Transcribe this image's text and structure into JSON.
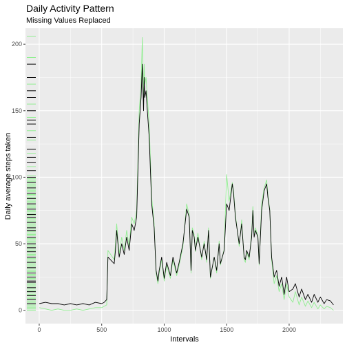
{
  "chart_data": {
    "type": "line",
    "title": "Daily Activity Pattern",
    "subtitle": "Missing Values Replaced",
    "xlabel": "Intervals",
    "ylabel": "Daily average steps taken",
    "xlim": [
      -110,
      2430
    ],
    "ylim": [
      -10,
      212
    ],
    "x_ticks": [
      0,
      500,
      1000,
      1500,
      2000
    ],
    "y_ticks": [
      0,
      50,
      100,
      150,
      200
    ],
    "grid": true,
    "legend": "none",
    "colors": {
      "panel": "#ebebeb",
      "grid": "#ffffff",
      "replaced": "#000000",
      "original": "#90ee90"
    },
    "series": [
      {
        "color": "#000000",
        "x": [
          0,
          50,
          100,
          150,
          200,
          250,
          300,
          350,
          400,
          450,
          500,
          520,
          540,
          550,
          600,
          610,
          620,
          640,
          660,
          680,
          700,
          720,
          740,
          760,
          780,
          800,
          815,
          825,
          835,
          840,
          845,
          855,
          865,
          880,
          900,
          920,
          935,
          950,
          960,
          980,
          1000,
          1020,
          1050,
          1070,
          1100,
          1120,
          1150,
          1180,
          1200,
          1215,
          1225,
          1240,
          1250,
          1260,
          1270,
          1300,
          1320,
          1340,
          1355,
          1370,
          1400,
          1420,
          1440,
          1450,
          1480,
          1500,
          1520,
          1545,
          1555,
          1570,
          1600,
          1620,
          1640,
          1650,
          1660,
          1680,
          1700,
          1710,
          1720,
          1730,
          1750,
          1760,
          1780,
          1800,
          1820,
          1830,
          1845,
          1860,
          1880,
          1900,
          1920,
          1940,
          1960,
          1980,
          2000,
          2030,
          2050,
          2080,
          2100,
          2130,
          2150,
          2180,
          2200,
          2230,
          2250,
          2280,
          2300,
          2330,
          2355
        ],
        "values": [
          5,
          6,
          5,
          5,
          4,
          5,
          4,
          5,
          4,
          6,
          5,
          6,
          8,
          40,
          35,
          45,
          60,
          40,
          50,
          42,
          55,
          45,
          65,
          60,
          70,
          140,
          160,
          185,
          150,
          175,
          160,
          165,
          150,
          130,
          80,
          62,
          30,
          22,
          30,
          40,
          24,
          36,
          26,
          40,
          28,
          36,
          50,
          76,
          70,
          30,
          60,
          55,
          45,
          50,
          55,
          40,
          50,
          38,
          60,
          25,
          40,
          30,
          50,
          35,
          45,
          80,
          75,
          95,
          88,
          70,
          50,
          65,
          40,
          38,
          45,
          40,
          55,
          75,
          55,
          60,
          55,
          35,
          75,
          90,
          95,
          85,
          75,
          40,
          25,
          30,
          18,
          25,
          12,
          25,
          14,
          16,
          20,
          10,
          16,
          8,
          12,
          6,
          12,
          6,
          10,
          5,
          8,
          7,
          4
        ]
      },
      {
        "color": "#90ee90",
        "x": [
          0,
          50,
          100,
          150,
          200,
          250,
          300,
          350,
          400,
          450,
          500,
          520,
          540,
          550,
          600,
          610,
          620,
          640,
          660,
          680,
          700,
          720,
          740,
          760,
          780,
          800,
          815,
          825,
          835,
          840,
          845,
          855,
          865,
          880,
          900,
          920,
          935,
          950,
          960,
          980,
          1000,
          1020,
          1050,
          1070,
          1100,
          1120,
          1150,
          1180,
          1200,
          1215,
          1225,
          1240,
          1250,
          1260,
          1270,
          1300,
          1320,
          1340,
          1355,
          1370,
          1400,
          1420,
          1440,
          1450,
          1480,
          1500,
          1520,
          1545,
          1555,
          1570,
          1600,
          1620,
          1640,
          1650,
          1660,
          1680,
          1700,
          1710,
          1720,
          1730,
          1750,
          1760,
          1780,
          1800,
          1820,
          1830,
          1845,
          1860,
          1880,
          1900,
          1920,
          1940,
          1960,
          1980,
          2000,
          2030,
          2050,
          2080,
          2100,
          2130,
          2150,
          2180,
          2200,
          2230,
          2250,
          2280,
          2300,
          2330,
          2355
        ],
        "values": [
          2,
          1,
          0,
          1,
          0,
          0,
          1,
          0,
          1,
          2,
          2,
          3,
          4,
          45,
          38,
          50,
          65,
          42,
          55,
          45,
          60,
          48,
          70,
          65,
          75,
          150,
          170,
          205,
          160,
          185,
          170,
          175,
          160,
          140,
          85,
          65,
          28,
          20,
          28,
          38,
          22,
          34,
          24,
          38,
          26,
          34,
          48,
          80,
          72,
          28,
          62,
          57,
          44,
          52,
          58,
          38,
          52,
          36,
          62,
          24,
          40,
          28,
          52,
          34,
          46,
          102,
          82,
          96,
          90,
          72,
          48,
          68,
          38,
          36,
          44,
          38,
          58,
          78,
          56,
          62,
          56,
          34,
          80,
          92,
          98,
          87,
          76,
          38,
          20,
          26,
          14,
          20,
          8,
          20,
          10,
          6,
          14,
          4,
          10,
          3,
          7,
          2,
          6,
          1,
          4,
          1,
          3,
          2,
          0
        ]
      }
    ],
    "rug": {
      "replaced_values": [
        5,
        8,
        11,
        14,
        17,
        21,
        22,
        25,
        28,
        32,
        36,
        40,
        44,
        47,
        50,
        55,
        60,
        62,
        66,
        70,
        72,
        76,
        80,
        84,
        88,
        92,
        96,
        100,
        105,
        111,
        115,
        121,
        130,
        140,
        143,
        150,
        160,
        165,
        175,
        185
      ],
      "original_values": [
        0,
        1,
        2,
        3,
        4,
        6,
        7,
        9,
        10,
        12,
        13,
        15,
        16,
        18,
        19,
        20,
        23,
        24,
        26,
        27,
        29,
        30,
        31,
        33,
        34,
        35,
        37,
        38,
        39,
        41,
        42,
        43,
        45,
        46,
        48,
        49,
        51,
        52,
        53,
        54,
        56,
        57,
        58,
        59,
        61,
        63,
        64,
        65,
        67,
        68,
        69,
        71,
        73,
        74,
        75,
        77,
        78,
        79,
        81,
        82,
        83,
        85,
        86,
        87,
        89,
        90,
        91,
        93,
        94,
        95,
        97,
        98,
        99,
        101,
        108,
        118,
        128,
        135,
        145,
        155,
        170,
        190,
        206
      ]
    }
  }
}
